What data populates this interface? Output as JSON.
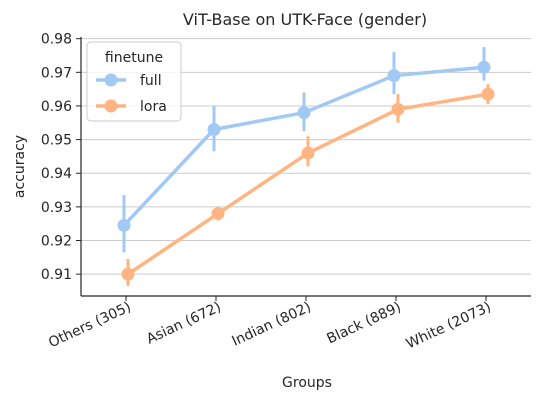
{
  "chart_data": {
    "type": "line",
    "title": "ViT-Base on UTK-Face (gender)",
    "xlabel": "Groups",
    "ylabel": "accuracy",
    "categories": [
      "Others (305)",
      "Asian (672)",
      "Indian (802)",
      "Black (889)",
      "White (2073)"
    ],
    "ylim": [
      0.9035,
      0.9805
    ],
    "yticks": [
      0.91,
      0.92,
      0.93,
      0.94,
      0.95,
      0.96,
      0.97,
      0.98
    ],
    "ytick_labels": [
      "0.91",
      "0.92",
      "0.93",
      "0.94",
      "0.95",
      "0.96",
      "0.97",
      "0.98"
    ],
    "grid": "horizontal",
    "legend": {
      "title": "finetune",
      "placement": "top-left"
    },
    "series": [
      {
        "name": "full",
        "color": "#a1c9f4",
        "values": [
          0.9245,
          0.953,
          0.958,
          0.969,
          0.9715
        ],
        "ci_low": [
          0.9165,
          0.9465,
          0.9525,
          0.9635,
          0.9675
        ],
        "ci_high": [
          0.9335,
          0.96,
          0.964,
          0.976,
          0.9775
        ]
      },
      {
        "name": "lora",
        "color": "#ffb482",
        "values": [
          0.91,
          0.928,
          0.946,
          0.959,
          0.9635
        ],
        "ci_low": [
          0.9065,
          0.926,
          0.942,
          0.955,
          0.9605
        ],
        "ci_high": [
          0.9145,
          0.93,
          0.951,
          0.9635,
          0.9665
        ]
      }
    ]
  }
}
